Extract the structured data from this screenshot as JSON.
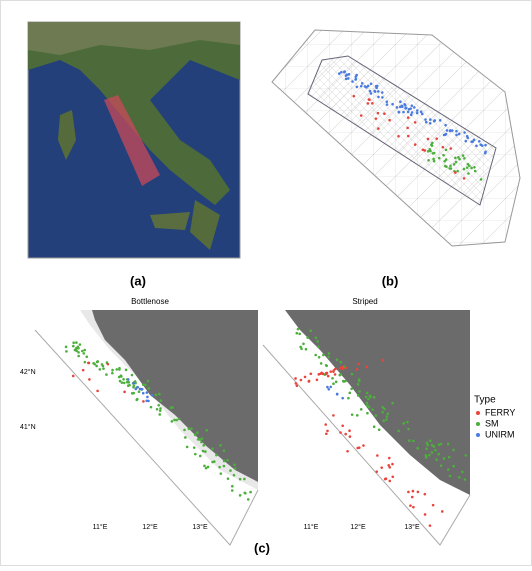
{
  "panels": {
    "a": {
      "label": "(a)"
    },
    "b": {
      "label": "(b)"
    },
    "c": {
      "label": "(c)",
      "maps": [
        {
          "title": "Bottlenose"
        },
        {
          "title": "Striped"
        }
      ],
      "y_labels": [
        "42°N",
        "41°N"
      ],
      "x_labels": [
        "11°E",
        "12°E",
        "13°E"
      ]
    }
  },
  "legend": {
    "title": "Type",
    "items": [
      {
        "label": "FERRY",
        "color": "#e8453c"
      },
      {
        "label": "SM",
        "color": "#4caf3c"
      },
      {
        "label": "UNIRM",
        "color": "#4a7be0"
      }
    ]
  }
}
